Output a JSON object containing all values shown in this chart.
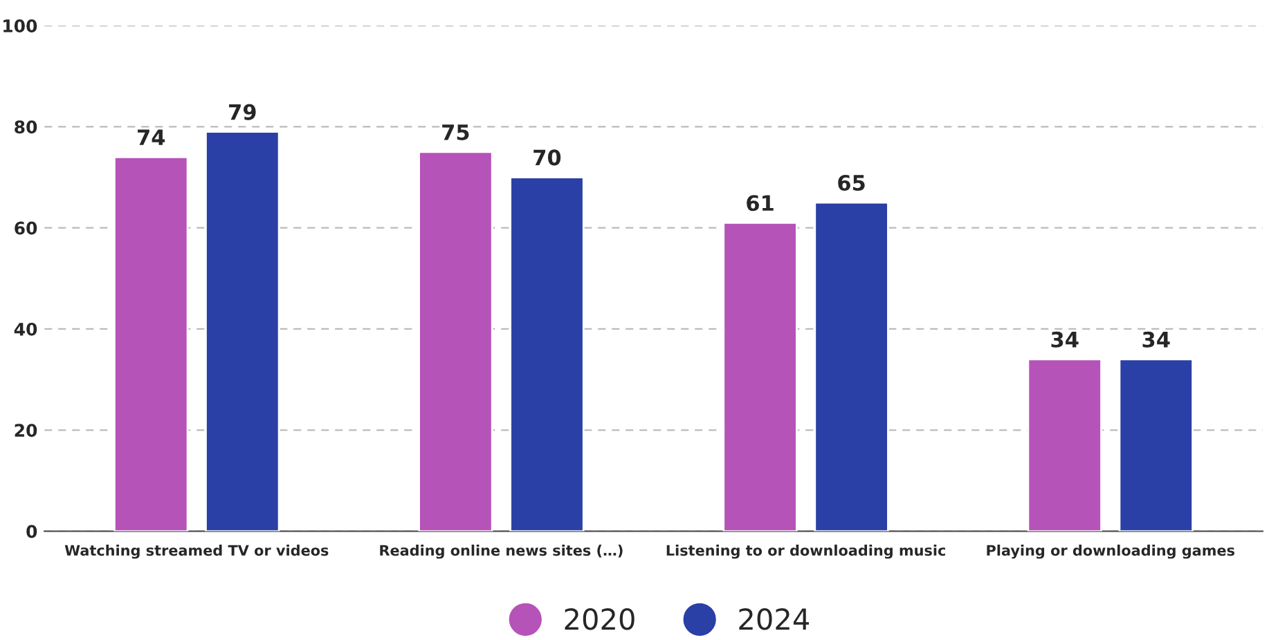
{
  "chart_data": {
    "type": "bar",
    "categories": [
      "Watching streamed TV or videos",
      "Reading online news sites (…)",
      "Listening to or downloading music",
      "Playing or downloading games"
    ],
    "series": [
      {
        "name": "2020",
        "color": "#b553b9",
        "values": [
          74,
          75,
          61,
          34
        ]
      },
      {
        "name": "2024",
        "color": "#2a40a6",
        "values": [
          79,
          70,
          65,
          34
        ]
      }
    ],
    "ylim": [
      0,
      100
    ],
    "yticks": [
      0,
      20,
      40,
      60,
      80,
      100
    ],
    "grid": "y",
    "legend": "bottom",
    "data_labels": true
  }
}
